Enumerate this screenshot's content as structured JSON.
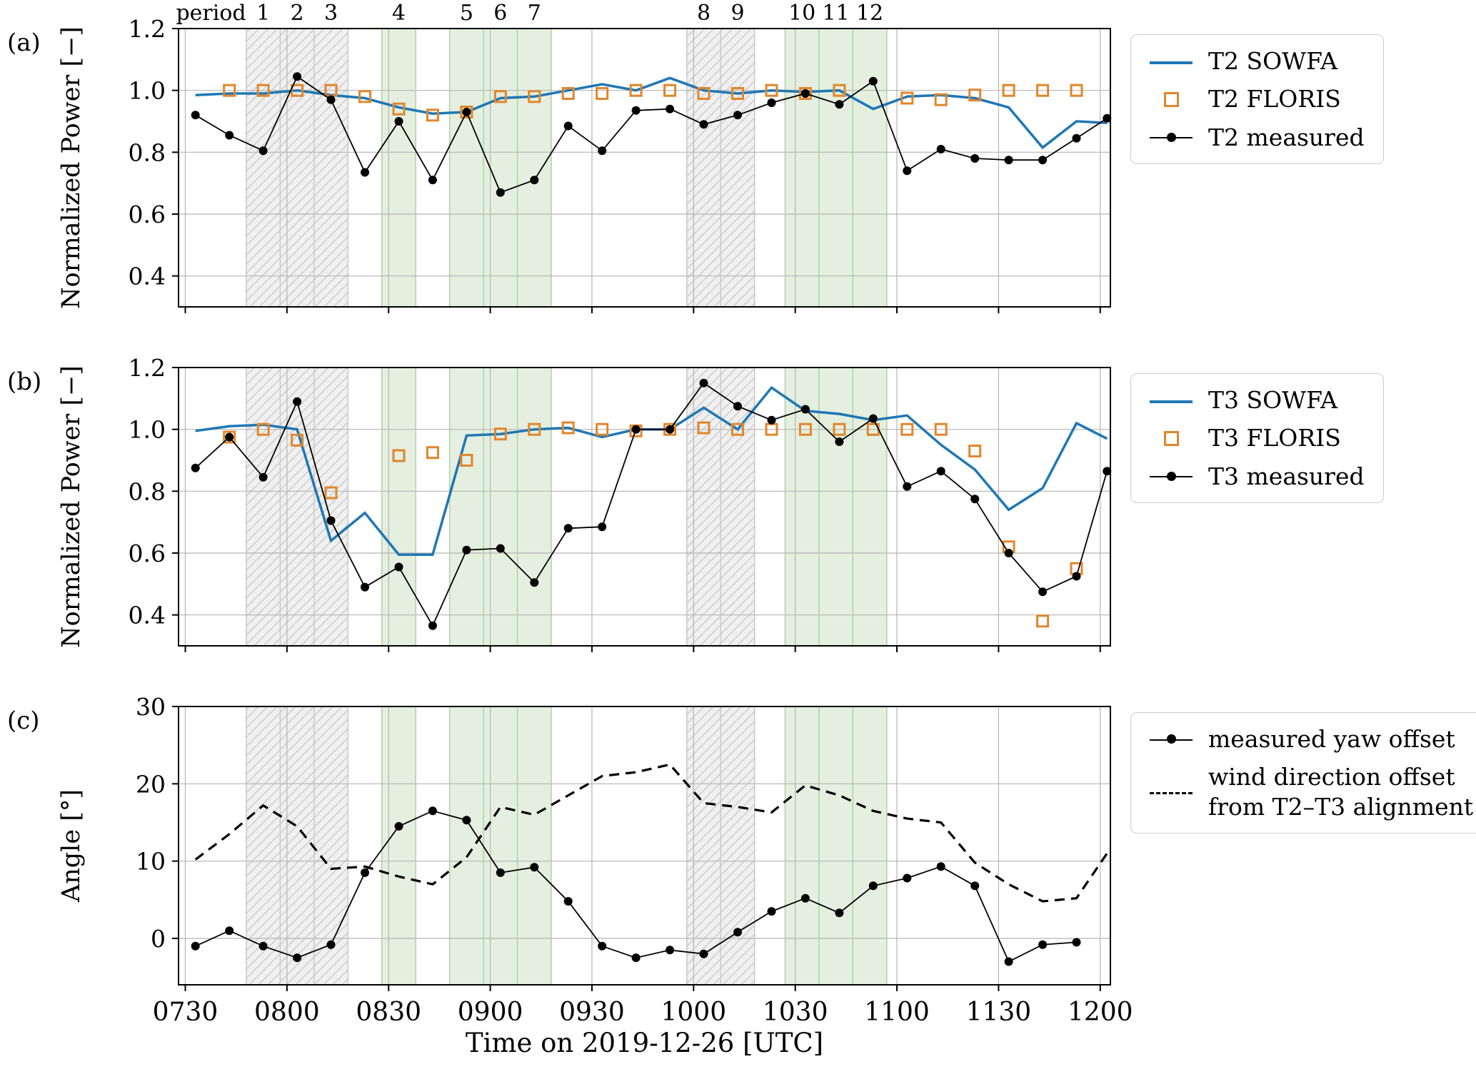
{
  "figure": {
    "xlabel": "Time on 2019-12-26 [UTC]",
    "panels": [
      {
        "letter": "(a)"
      },
      {
        "letter": "(b)"
      },
      {
        "letter": "(c)"
      }
    ],
    "period_row_prefix": "period"
  },
  "colors": {
    "sowfa": "#1f77b4",
    "floris": "#e0862c",
    "measured": "#000000",
    "grid": "#b4b4b4",
    "spine": "#000000",
    "band_gray_fill": "#f0f0f0",
    "band_gray_hatch": "#d4d4d4",
    "band_gray_edge": "#c9c9c9",
    "band_green_fill": "#e4efdf",
    "band_green_edge": "#aed3a4"
  },
  "x_axis": {
    "tick_labels": [
      "0730",
      "0800",
      "0830",
      "0900",
      "0930",
      "1000",
      "1030",
      "1100",
      "1130",
      "1200"
    ],
    "tick_minutes": [
      0,
      30,
      60,
      90,
      120,
      150,
      180,
      210,
      240,
      270
    ],
    "lim": [
      -2,
      273
    ]
  },
  "bands": [
    {
      "kind": "gray",
      "start": 18,
      "end": 48,
      "dividers": [
        28,
        38
      ]
    },
    {
      "kind": "green",
      "start": 58,
      "end": 68,
      "dividers": []
    },
    {
      "kind": "green",
      "start": 78,
      "end": 108,
      "dividers": [
        88,
        98
      ]
    },
    {
      "kind": "gray",
      "start": 148,
      "end": 168,
      "dividers": [
        158
      ]
    },
    {
      "kind": "green",
      "start": 177,
      "end": 207,
      "dividers": [
        187,
        197
      ]
    }
  ],
  "periods": [
    {
      "label": "1",
      "minute": 23
    },
    {
      "label": "2",
      "minute": 33
    },
    {
      "label": "3",
      "minute": 43
    },
    {
      "label": "4",
      "minute": 63
    },
    {
      "label": "5",
      "minute": 83
    },
    {
      "label": "6",
      "minute": 93
    },
    {
      "label": "7",
      "minute": 103
    },
    {
      "label": "8",
      "minute": 153
    },
    {
      "label": "9",
      "minute": 163
    },
    {
      "label": "10",
      "minute": 182
    },
    {
      "label": "11",
      "minute": 192
    },
    {
      "label": "12",
      "minute": 202
    }
  ],
  "chart_data": [
    {
      "type": "line",
      "panel": "a",
      "title": "",
      "ylabel": "Normalized Power [−]",
      "ylim": [
        0.3,
        1.2
      ],
      "yticks": [
        0.4,
        0.6,
        0.8,
        1.0,
        1.2
      ],
      "ytick_labels": [
        "0.4",
        "0.6",
        "0.8",
        "1.0",
        "1.2"
      ],
      "x_minutes": [
        3,
        13,
        23,
        33,
        43,
        53,
        63,
        73,
        83,
        93,
        103,
        113,
        123,
        133,
        143,
        153,
        163,
        173,
        183,
        193,
        203,
        213,
        223,
        233,
        243,
        253,
        263,
        272
      ],
      "series": [
        {
          "name": "T2 SOWFA",
          "data_name": "t2-sowfa",
          "color_key": "sowfa",
          "line": "solid",
          "width": 3.5,
          "marker": "none",
          "values": [
            0.985,
            0.99,
            0.99,
            1.0,
            0.985,
            0.975,
            0.945,
            0.925,
            0.93,
            0.975,
            0.98,
            1.0,
            1.02,
            1.0,
            1.04,
            1.0,
            0.99,
            1.0,
            0.995,
            1.0,
            0.94,
            0.98,
            0.985,
            0.975,
            0.945,
            0.815,
            0.9,
            0.895
          ]
        },
        {
          "name": "T2 FLORIS",
          "data_name": "t2-floris",
          "color_key": "floris",
          "line": "none",
          "width": 0,
          "marker": "open-square",
          "values": [
            null,
            1.0,
            1.0,
            1.0,
            1.0,
            0.98,
            0.94,
            0.92,
            0.93,
            0.98,
            0.98,
            0.99,
            0.99,
            1.0,
            1.0,
            0.99,
            0.99,
            1.0,
            0.99,
            1.0,
            null,
            0.975,
            0.97,
            0.985,
            1.0,
            1.0,
            1.0,
            null
          ]
        },
        {
          "name": "T2 measured",
          "data_name": "t2-measured",
          "color_key": "measured",
          "line": "solid",
          "width": 1.8,
          "marker": "dot",
          "values": [
            0.92,
            0.855,
            0.805,
            1.045,
            0.97,
            0.735,
            0.9,
            0.71,
            0.93,
            0.67,
            0.71,
            0.885,
            0.805,
            0.935,
            0.94,
            0.89,
            0.92,
            0.96,
            0.99,
            0.955,
            1.03,
            0.74,
            0.81,
            0.78,
            0.775,
            0.775,
            0.845,
            0.91
          ]
        }
      ]
    },
    {
      "type": "line",
      "panel": "b",
      "title": "",
      "ylabel": "Normalized Power [−]",
      "ylim": [
        0.3,
        1.2
      ],
      "yticks": [
        0.4,
        0.6,
        0.8,
        1.0,
        1.2
      ],
      "ytick_labels": [
        "0.4",
        "0.6",
        "0.8",
        "1.0",
        "1.2"
      ],
      "x_minutes": [
        3,
        13,
        23,
        33,
        43,
        53,
        63,
        73,
        83,
        93,
        103,
        113,
        123,
        133,
        143,
        153,
        163,
        173,
        183,
        193,
        203,
        213,
        223,
        233,
        243,
        253,
        263,
        272
      ],
      "series": [
        {
          "name": "T3 SOWFA",
          "data_name": "t3-sowfa",
          "color_key": "sowfa",
          "line": "solid",
          "width": 3.5,
          "marker": "none",
          "values": [
            0.995,
            1.01,
            1.015,
            1.0,
            0.64,
            0.73,
            0.595,
            0.595,
            0.98,
            0.985,
            1.0,
            1.005,
            0.975,
            1.0,
            1.0,
            1.07,
            1.0,
            1.135,
            1.06,
            1.05,
            1.03,
            1.045,
            0.95,
            0.87,
            0.74,
            0.81,
            1.02,
            0.97
          ]
        },
        {
          "name": "T3 FLORIS",
          "data_name": "t3-floris",
          "color_key": "floris",
          "line": "none",
          "width": 0,
          "marker": "open-square",
          "values": [
            null,
            0.975,
            1.0,
            0.965,
            0.795,
            null,
            0.915,
            0.925,
            0.9,
            0.985,
            1.0,
            1.005,
            1.0,
            0.995,
            1.0,
            1.005,
            1.0,
            1.0,
            1.0,
            1.0,
            1.0,
            1.0,
            1.0,
            0.93,
            0.62,
            0.38,
            0.55,
            null
          ]
        },
        {
          "name": "T3 measured",
          "data_name": "t3-measured",
          "color_key": "measured",
          "line": "solid",
          "width": 1.8,
          "marker": "dot",
          "values": [
            0.875,
            0.975,
            0.845,
            1.09,
            0.705,
            0.49,
            0.555,
            0.365,
            0.61,
            0.615,
            0.505,
            0.68,
            0.685,
            1.0,
            1.0,
            1.15,
            1.075,
            1.03,
            1.065,
            0.96,
            1.035,
            0.815,
            0.865,
            0.775,
            0.6,
            0.475,
            0.525,
            0.865
          ]
        }
      ]
    },
    {
      "type": "line",
      "panel": "c",
      "title": "",
      "ylabel": "Angle [°]",
      "ylim": [
        -6,
        30
      ],
      "yticks": [
        0,
        10,
        20,
        30
      ],
      "ytick_labels": [
        "0",
        "10",
        "20",
        "30"
      ],
      "x_minutes": [
        3,
        13,
        23,
        33,
        43,
        53,
        63,
        73,
        83,
        93,
        103,
        113,
        123,
        133,
        143,
        153,
        163,
        173,
        183,
        193,
        203,
        213,
        223,
        233,
        243,
        253,
        263,
        272
      ],
      "series": [
        {
          "name": "measured yaw offset",
          "data_name": "measured-yaw-offset",
          "color_key": "measured",
          "line": "solid",
          "width": 1.8,
          "marker": "dot",
          "label_lines": [
            "measured yaw offset"
          ],
          "values": [
            -1.0,
            1.0,
            -1.0,
            -2.5,
            -0.8,
            8.5,
            14.5,
            16.5,
            15.3,
            8.5,
            9.2,
            4.8,
            -1.0,
            -2.5,
            -1.5,
            -2.0,
            0.8,
            3.5,
            5.2,
            3.3,
            6.8,
            7.8,
            9.3,
            6.8,
            -3.0,
            -0.8,
            -0.5,
            null
          ]
        },
        {
          "name": "wind direction offset from T2–T3 alignment",
          "data_name": "wind-direction-offset",
          "color_key": "measured",
          "line": "dashed",
          "width": 3.2,
          "marker": "none",
          "label_lines": [
            "wind direction offset",
            "from T2–T3 alignment"
          ],
          "values": [
            10.2,
            13.5,
            17.2,
            14.5,
            9.0,
            9.3,
            8.0,
            7.0,
            10.5,
            17.0,
            16.0,
            18.5,
            21.0,
            21.5,
            22.5,
            17.5,
            17.0,
            16.3,
            19.8,
            18.5,
            16.5,
            15.5,
            15.0,
            9.8,
            7.0,
            4.8,
            5.2,
            11.0
          ]
        }
      ]
    }
  ]
}
